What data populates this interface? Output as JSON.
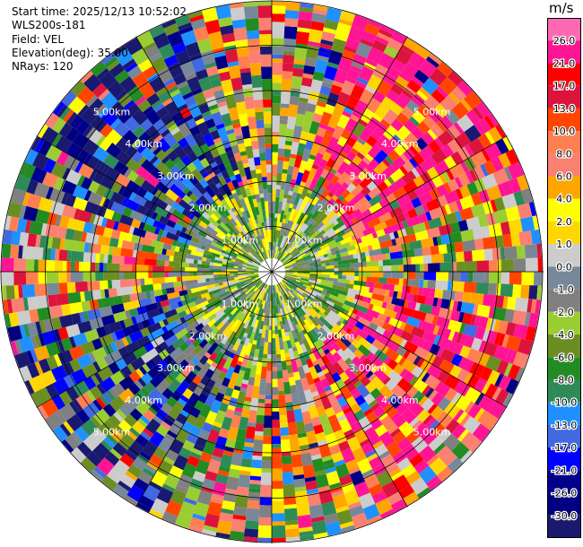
{
  "info": {
    "start_time": "Start time: 2025/12/13 10:52:02",
    "site": "WLS200s-181",
    "field": "Field: VEL",
    "elevation": "Elevation(deg): 35.00",
    "nrays": "NRays: 120"
  },
  "chart_data": {
    "type": "ppi",
    "field": "VEL",
    "unit": "m/s",
    "elevation_deg": 35.0,
    "nrays": 120,
    "max_range_km": 6.0,
    "range_ring_labels": [
      "1.00km",
      "2.00km",
      "3.00km",
      "4.00km",
      "5.00km"
    ],
    "colorbar": {
      "title": "m/s",
      "levels": [
        {
          "label": "26.0",
          "color": "#ff1493"
        },
        {
          "label": "21.0",
          "color": "#ff0000"
        },
        {
          "label": "17.0",
          "color": "#dc143c"
        },
        {
          "label": "13.0",
          "color": "#ff4500"
        },
        {
          "label": "10.0",
          "color": "#ff7f50"
        },
        {
          "label": "8.0",
          "color": "#fa8072"
        },
        {
          "label": "6.0",
          "color": "#ffa500"
        },
        {
          "label": "4.0",
          "color": "#ffff00"
        },
        {
          "label": "2.0",
          "color": "#ffd700"
        },
        {
          "label": "1.0",
          "color": "#cccccc"
        },
        {
          "label": "0.0",
          "color": "#778899"
        },
        {
          "label": "-1.0",
          "color": "#808080"
        },
        {
          "label": "-2.0",
          "color": "#9acd32"
        },
        {
          "label": "-4.0",
          "color": "#6b8e23"
        },
        {
          "label": "-6.0",
          "color": "#228b22"
        },
        {
          "label": "-8.0",
          "color": "#2e8b57"
        },
        {
          "label": "-10.0",
          "color": "#1e90ff"
        },
        {
          "label": "-13.0",
          "color": "#4169e1"
        },
        {
          "label": "-17.0",
          "color": "#0000ff"
        },
        {
          "label": "-21.0",
          "color": "#00008b"
        },
        {
          "label": "-26.0",
          "color": "#000080"
        },
        {
          "label": "-30.0",
          "color": "#191970"
        }
      ],
      "top_color": "#ff69b4"
    }
  }
}
